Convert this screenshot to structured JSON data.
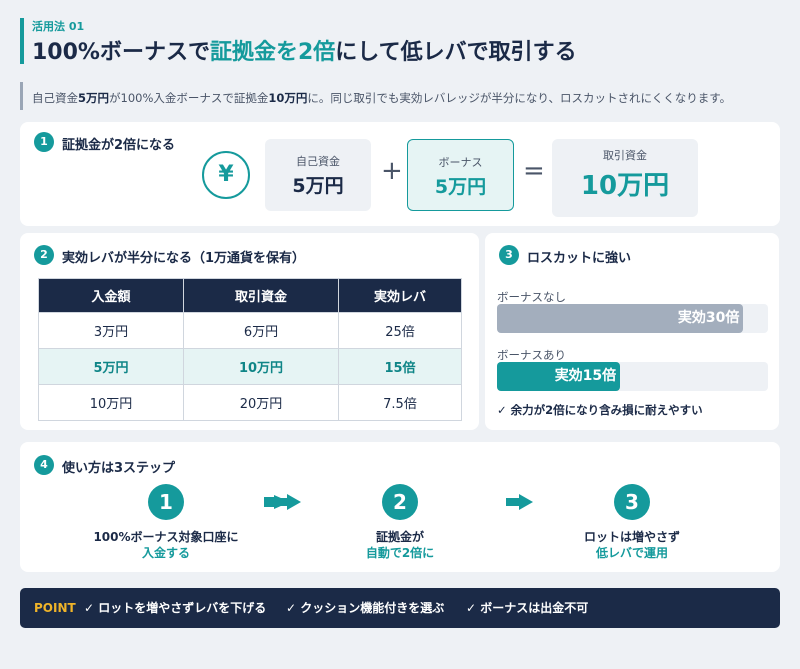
{
  "header": {
    "tag": "活用法 01",
    "title": [
      "100%ボーナスで",
      "証拠金を2倍",
      "にして低レバで取引する"
    ]
  },
  "lead": [
    "自己資金",
    "5万円",
    "が100%入金ボーナスで証拠金",
    "10万円",
    "に。同じ取引でも実効レバレッジが半分になり、ロスカットされにくくなります。"
  ],
  "section1": {
    "number": "1",
    "title": "証拠金が2倍になる",
    "icon": "¥",
    "boxes": [
      {
        "label": "自己資金",
        "value": "5万円"
      },
      {
        "label": "ボーナス",
        "value": "5万円"
      },
      {
        "label": "取引資金",
        "value": "10万円"
      }
    ],
    "operators": [
      "+",
      "="
    ]
  },
  "section2": {
    "number": "2",
    "title": "実効レバが半分になる（1万通貨を保有）",
    "table": {
      "header": [
        "入金額",
        "取引資金",
        "実効レバ"
      ],
      "rows": [
        [
          "3万円",
          "6万円",
          "25倍"
        ],
        [
          "5万円",
          "10万円",
          "15倍"
        ],
        [
          "10万円",
          "20万円",
          "7.5倍"
        ]
      ],
      "highlight_row": 1
    }
  },
  "section3": {
    "number": "3",
    "title": "ロスカットに強い",
    "chart_data": {
      "type": "bar",
      "xlim": [
        0,
        33
      ],
      "categories": [
        "ボーナスなし",
        "ボーナスあり"
      ],
      "values": [
        30,
        15
      ],
      "value_labels": [
        "実効30倍",
        "実効15倍"
      ],
      "colors": [
        "#a3aebd",
        "#159a9c"
      ]
    },
    "note": "✓ 余力が2倍になり含み損に耐えやすい"
  },
  "section4": {
    "number": "4",
    "title": "使い方は3ステップ",
    "steps": [
      {
        "number": "1",
        "lines": [
          "100%ボーナス対象口座に",
          "入金する"
        ]
      },
      {
        "number": "2",
        "lines": [
          "証拠金が",
          "自動で2倍に"
        ]
      },
      {
        "number": "3",
        "lines": [
          "ロットは増やさず",
          "低レバで運用"
        ]
      }
    ]
  },
  "point": {
    "label": "POINT",
    "items": [
      "✓ ロットを増やさずレバを下げる",
      "✓ クッション機能付きを選ぶ",
      "✓ ボーナスは出金不可"
    ]
  }
}
